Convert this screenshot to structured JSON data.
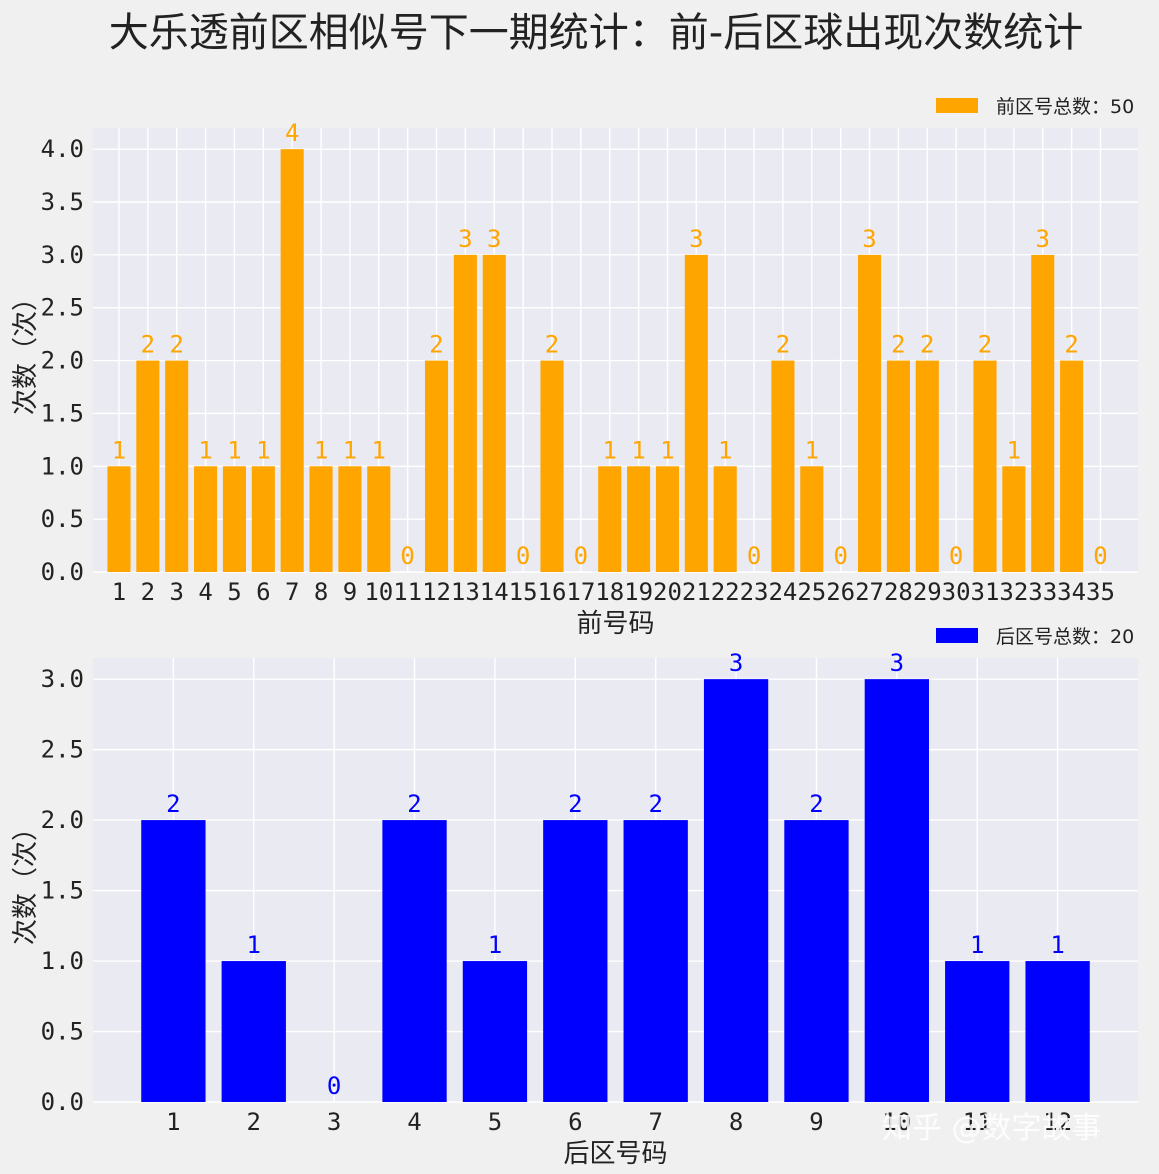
{
  "title": "大乐透前区相似号下一期统计：前-后区球出现次数统计",
  "watermark": "知乎 @数字故事",
  "chart_data": [
    {
      "type": "bar",
      "color": "#ffa500",
      "categories": [
        "1",
        "2",
        "3",
        "4",
        "5",
        "6",
        "7",
        "8",
        "9",
        "10",
        "11",
        "12",
        "13",
        "14",
        "15",
        "16",
        "17",
        "18",
        "19",
        "20",
        "21",
        "22",
        "23",
        "24",
        "25",
        "26",
        "27",
        "28",
        "29",
        "30",
        "31",
        "32",
        "33",
        "34",
        "35"
      ],
      "series": [
        {
          "name": "前区号总数：50",
          "values": [
            1,
            2,
            2,
            1,
            1,
            1,
            4,
            1,
            1,
            1,
            0,
            2,
            3,
            3,
            0,
            2,
            0,
            1,
            1,
            1,
            3,
            1,
            0,
            2,
            1,
            0,
            3,
            2,
            2,
            0,
            2,
            1,
            3,
            2,
            0
          ]
        }
      ],
      "xlabel": "前号码",
      "ylabel": "次数（次）",
      "ylim": [
        0,
        4.2
      ],
      "yticks": [
        "0.0",
        "0.5",
        "1.0",
        "1.5",
        "2.0",
        "2.5",
        "3.0",
        "3.5",
        "4.0"
      ],
      "grid": true,
      "legend": "top-right"
    },
    {
      "type": "bar",
      "color": "#0000ff",
      "categories": [
        "1",
        "2",
        "3",
        "4",
        "5",
        "6",
        "7",
        "8",
        "9",
        "10",
        "11",
        "12"
      ],
      "series": [
        {
          "name": "后区号总数：20",
          "values": [
            2,
            1,
            0,
            2,
            1,
            2,
            2,
            3,
            2,
            3,
            1,
            1
          ]
        }
      ],
      "xlabel": "后区号码",
      "ylabel": "次数（次）",
      "ylim": [
        0,
        3.15
      ],
      "yticks": [
        "0.0",
        "0.5",
        "1.0",
        "1.5",
        "2.0",
        "2.5",
        "3.0"
      ],
      "grid": true,
      "legend": "top-right"
    }
  ]
}
